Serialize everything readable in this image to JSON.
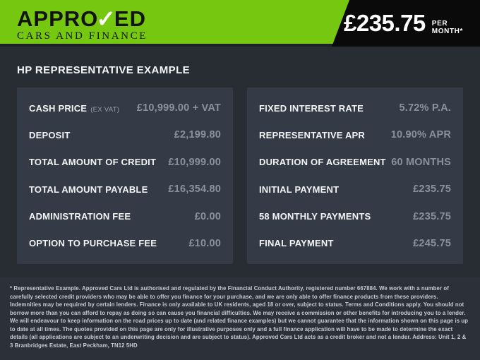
{
  "header": {
    "logo": {
      "word_start": "APPRO",
      "check_glyph": "✓",
      "word_end": "ED",
      "subtitle": "CARS AND FINANCE"
    },
    "price": {
      "amount": "£235.75",
      "period": "PER MONTH*"
    }
  },
  "section_title": "HP REPRESENTATIVE EXAMPLE",
  "tables": {
    "left": {
      "rows": [
        {
          "label": "CASH PRICE",
          "note": "(EX VAT)",
          "value": "£10,999.00 + VAT"
        },
        {
          "label": "DEPOSIT",
          "note": "",
          "value": "£2,199.80"
        },
        {
          "label": "TOTAL AMOUNT OF CREDIT",
          "note": "",
          "value": "£10,999.00"
        },
        {
          "label": "TOTAL AMOUNT PAYABLE",
          "note": "",
          "value": "£16,354.80"
        },
        {
          "label": "ADMINISTRATION FEE",
          "note": "",
          "value": "£0.00"
        },
        {
          "label": "OPTION TO PURCHASE FEE",
          "note": "",
          "value": "£10.00"
        }
      ]
    },
    "right": {
      "rows": [
        {
          "label": "FIXED INTEREST RATE",
          "note": "",
          "value": "5.72% P.A."
        },
        {
          "label": "REPRESENTATIVE APR",
          "note": "",
          "value": "10.90% APR"
        },
        {
          "label": "DURATION OF AGREEMENT",
          "note": "",
          "value": "60 MONTHS"
        },
        {
          "label": "INITIAL PAYMENT",
          "note": "",
          "value": "£235.75"
        },
        {
          "label": "58 MONTHLY PAYMENTS",
          "note": "",
          "value": "£235.75"
        },
        {
          "label": "FINAL PAYMENT",
          "note": "",
          "value": "£245.75"
        }
      ]
    }
  },
  "footer": {
    "text": "* Representative Example. Approved Cars Ltd is authorised and regulated by the Financial Conduct Authority, registered number 667884. We work with a number of carefully selected credit providers who may be able to offer you finance for your purchase, and we are only able to offer finance products from these providers. Indemnities may be required by certain lenders. Finance is only available to UK residents, aged 18 or over, subject to status. Terms and Conditions apply. You should not borrow more than you can afford to repay as doing so can cause you financial difficulties. We may receive a commission or other benefits for introducing you to a lender. We will endeavour to keep information on the road prices up to date (and related finance examples) but we cannot guarantee that the information shown on this page is up to date at all times. The quotes provided on this page are only for illustrative purposes only and a full finance application will have to be made to determine the exact details (all applications are subject to an underwriting decision and are subject to status). Approved Cars Ltd acts as a credit broker and not a lender. Address: Unit 1, 2 & 3 Branbridges Estate, East Peckham, TN12 5HD"
  },
  "colors": {
    "brand_green": "#75c80f",
    "badge_black": "#0a0a0b",
    "page_bg": "#282c33",
    "panel_bg": "#353b46",
    "footer_bg": "#2c3039",
    "label_text": "#f1f3f5",
    "value_text": "#8a909c"
  }
}
